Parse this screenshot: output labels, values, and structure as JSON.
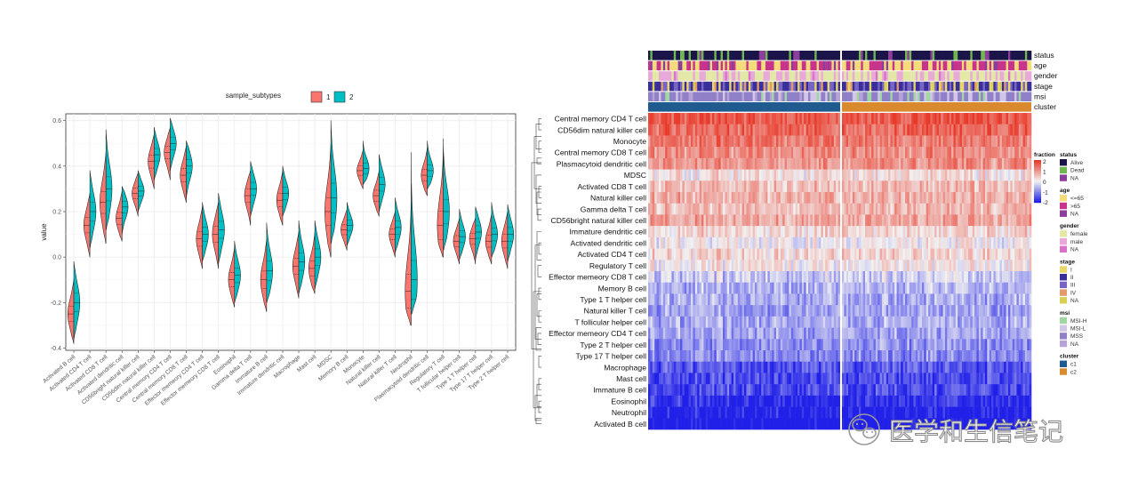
{
  "chart_data": [
    {
      "type": "violin",
      "title": "",
      "ylabel": "value",
      "xlabel": "",
      "legend_title": "sample_subtypes",
      "legend_position": "top",
      "grid": true,
      "ylim": [
        -0.41,
        0.63
      ],
      "y_ticks": [
        -0.4,
        -0.2,
        0.0,
        0.2,
        0.4,
        0.6
      ],
      "y_tick_labels": [
        "-0.4",
        "-0.2",
        "0.0",
        "0.2",
        "0.4",
        "0.6"
      ],
      "categories": [
        "Activated B cell",
        "Activated CD4 T cell",
        "Activated CD8 T cell",
        "Activated dendritic cell",
        "CD56bright natural killer cell",
        "CD56dim natural killer cell",
        "Central memory CD4 T cell",
        "Central memory CD8 T cell",
        "Effector memeory CD4 T cell",
        "Effector memeory CD8 T cell",
        "Eosinophil",
        "Gamma delta T cell",
        "Immature B cell",
        "Immature dendritic cell",
        "Macrophage",
        "Mast cell",
        "MDSC",
        "Memory B cell",
        "Monocyte",
        "Natural killer cell",
        "Natural killer T cell",
        "Neutrophil",
        "Plasmacytoid dendritic cell",
        "Regulatory T cell",
        "T follicular helper cell",
        "Type 1 T helper cell",
        "Type 17 T helper cell",
        "Type 2 T helper cell"
      ],
      "series": [
        {
          "name": "1",
          "color": "#F8766D",
          "median": [
            -0.25,
            0.14,
            0.24,
            0.17,
            0.28,
            0.42,
            0.46,
            0.36,
            0.08,
            0.1,
            -0.1,
            0.27,
            -0.1,
            0.25,
            -0.04,
            -0.05,
            0.2,
            0.12,
            0.38,
            0.27,
            0.1,
            -0.15,
            0.36,
            0.14,
            0.07,
            0.08,
            0.07,
            0.07
          ],
          "min": [
            -0.38,
            0.0,
            0.06,
            0.07,
            0.18,
            0.3,
            0.34,
            0.24,
            -0.05,
            -0.05,
            -0.22,
            0.14,
            -0.24,
            0.14,
            -0.18,
            -0.16,
            0.0,
            0.03,
            0.3,
            0.18,
            0.0,
            -0.3,
            0.27,
            0.0,
            -0.03,
            -0.03,
            -0.03,
            -0.05
          ],
          "max": [
            -0.1,
            0.28,
            0.46,
            0.29,
            0.37,
            0.54,
            0.57,
            0.49,
            0.22,
            0.24,
            0.04,
            0.38,
            0.08,
            0.38,
            0.11,
            0.11,
            0.5,
            0.21,
            0.47,
            0.38,
            0.2,
            0.32,
            0.48,
            0.52,
            0.17,
            0.17,
            0.19,
            0.2
          ]
        },
        {
          "name": "2",
          "color": "#00BFC4",
          "median": [
            -0.2,
            0.2,
            0.3,
            0.22,
            0.29,
            0.45,
            0.5,
            0.4,
            0.1,
            0.12,
            -0.08,
            0.3,
            -0.06,
            0.28,
            -0.02,
            0.0,
            0.26,
            0.14,
            0.39,
            0.32,
            0.13,
            -0.1,
            0.38,
            0.2,
            0.09,
            0.11,
            0.1,
            0.1
          ],
          "min": [
            -0.36,
            0.04,
            0.12,
            0.1,
            0.2,
            0.34,
            0.38,
            0.26,
            -0.02,
            -0.03,
            -0.2,
            0.18,
            -0.2,
            0.18,
            -0.16,
            -0.14,
            0.06,
            0.05,
            0.32,
            0.2,
            0.02,
            -0.25,
            0.3,
            0.03,
            -0.01,
            -0.01,
            0.0,
            -0.02
          ],
          "max": [
            -0.02,
            0.38,
            0.56,
            0.31,
            0.38,
            0.57,
            0.61,
            0.51,
            0.24,
            0.28,
            0.07,
            0.42,
            0.15,
            0.4,
            0.16,
            0.16,
            0.6,
            0.24,
            0.51,
            0.45,
            0.26,
            0.46,
            0.51,
            0.48,
            0.21,
            0.22,
            0.24,
            0.23
          ]
        }
      ]
    },
    {
      "type": "heatmap",
      "title": "",
      "rows": [
        "Central memory CD4 T cell",
        "CD56dim natural killer cell",
        "Monocyte",
        "Central memory CD8 T cell",
        "Plasmacytoid dendritic cell",
        "MDSC",
        "Activated CD8 T cell",
        "Natural killer cell",
        "Gamma delta T cell",
        "CD56bright natural killer cell",
        "Immature dendritic cell",
        "Activated dendritic cell",
        "Activated CD4 T cell",
        "Regulatory T cell",
        "Effector memeory CD8 T cell",
        "Memory B cell",
        "Type 1 T helper cell",
        "Natural killer T cell",
        "T follicular helper cell",
        "Effector memeory CD4 T cell",
        "Type 2 T helper cell",
        "Type 17 T helper cell",
        "Macrophage",
        "Mast cell",
        "Immature  B cell",
        "Eosinophil",
        "Neutrophil",
        "Activated B cell"
      ],
      "row_mean_fraction": [
        1.7,
        1.5,
        1.3,
        1.1,
        1.0,
        0.2,
        0.6,
        0.7,
        0.6,
        0.8,
        0.3,
        0.0,
        0.3,
        0.1,
        -0.4,
        -0.6,
        -0.7,
        -0.8,
        -0.7,
        -0.8,
        -0.9,
        -1.0,
        -1.5,
        -1.6,
        -1.6,
        -1.9,
        -2.1,
        -2.3
      ],
      "cluster_split_fraction": 0.5,
      "columns_per_cluster": 90,
      "annotation_tracks": [
        "status",
        "age",
        "gender",
        "stage",
        "msi",
        "cluster"
      ],
      "color_scale": {
        "name": "fraction",
        "min": -2,
        "max": 2,
        "ticks": [
          "2",
          "1",
          "0",
          "-1",
          "-2"
        ],
        "low": "#2020E8",
        "mid": "#F2F2F2",
        "high": "#E83A2A"
      },
      "legends": [
        {
          "title": "status",
          "items": [
            {
              "label": "Alive",
              "color": "#1B1448"
            },
            {
              "label": "Dead",
              "color": "#6FB74F"
            },
            {
              "label": "NA",
              "color": "#8C3F9A"
            }
          ]
        },
        {
          "title": "age",
          "items": [
            {
              "label": "<=65",
              "color": "#F4DC7A"
            },
            {
              "label": ">65",
              "color": "#C8348C"
            },
            {
              "label": "NA",
              "color": "#8C3F9A"
            }
          ]
        },
        {
          "title": "gender",
          "items": [
            {
              "label": "female",
              "color": "#E4E8A6"
            },
            {
              "label": "male",
              "color": "#E8A8D8"
            },
            {
              "label": "NA",
              "color": "#D873C9"
            }
          ]
        },
        {
          "title": "stage",
          "items": [
            {
              "label": "I",
              "color": "#E8D66A"
            },
            {
              "label": "II",
              "color": "#3A2F9A"
            },
            {
              "label": "III",
              "color": "#7865C3"
            },
            {
              "label": "IV",
              "color": "#E19A6A"
            },
            {
              "label": "NA",
              "color": "#D8CF55"
            }
          ]
        },
        {
          "title": "msi",
          "items": [
            {
              "label": "MSI-H",
              "color": "#9FD6A1"
            },
            {
              "label": "MSI-L",
              "color": "#D2C6E6"
            },
            {
              "label": "MSS",
              "color": "#8F80C8"
            },
            {
              "label": "NA",
              "color": "#B6A3D6"
            }
          ]
        },
        {
          "title": "cluster",
          "items": [
            {
              "label": "c1",
              "color": "#1F5B8F"
            },
            {
              "label": "c2",
              "color": "#D9892E"
            }
          ]
        }
      ]
    }
  ],
  "watermark": {
    "text": "医学和生信笔记",
    "icon": "wechat-icon"
  }
}
